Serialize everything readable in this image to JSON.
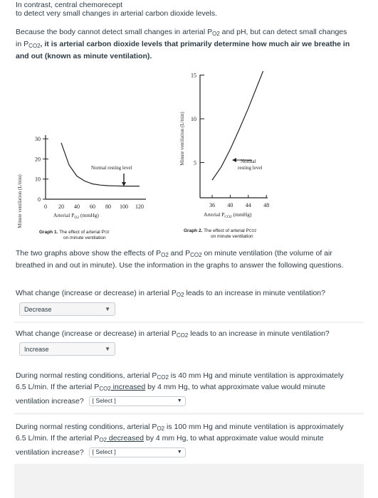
{
  "intro": {
    "line0": "In contrast, central chemorecept",
    "line1": "to detect very small changes in arterial carbon dioxide levels.",
    "para_a": "Because the body cannot detect small changes in arterial P",
    "po2_sub": "O2",
    "para_b": " and pH, but can detect small changes in P",
    "pco2_sub": "CO2",
    "para_c": ", it is arterial carbon dioxide levels that primarily determine how much air we breathe in and out (known as minute ventilation)."
  },
  "graph1": {
    "y_label": "Minute ventilation (L/min)",
    "y_ticks": [
      "30",
      "20",
      "10",
      "0"
    ],
    "x_ticks": [
      "0",
      "20",
      "40",
      "60",
      "80",
      "100",
      "120"
    ],
    "x_label_a": "Arterial P",
    "x_label_sub": "O2",
    "x_label_b": " (mmHg)",
    "annotation": "Normal resting level",
    "caption_a": "Graph 1.",
    "caption_b": " The effect of arterial P",
    "caption_sub": "O2",
    "caption_c": "on minute ventilation",
    "curve_x": [
      20,
      30,
      40,
      50,
      60,
      70,
      80,
      90,
      100,
      110,
      120
    ],
    "curve_y": [
      28,
      17,
      11.5,
      9,
      7.6,
      7,
      6.7,
      6.6,
      6.5,
      6.5,
      6.5
    ]
  },
  "graph2": {
    "y_label": "Minute ventilation (L/min)",
    "y_ticks": [
      "15",
      "10",
      "5"
    ],
    "x_ticks": [
      "36",
      "40",
      "44",
      "48"
    ],
    "x_label_a": "Arterial P",
    "x_label_sub": "CO2",
    "x_label_b": " (mmHg)",
    "annotation_1": "Normal",
    "annotation_2": "resting level",
    "caption_a": "Graph 2.",
    "caption_b": " The effect of arterial P",
    "caption_sub": "CO2",
    "caption_c": "on minute ventilation",
    "curve_x": [
      36,
      38,
      40,
      42,
      44,
      46,
      48
    ],
    "curve_y": [
      3,
      4.5,
      6.5,
      8.8,
      11.2,
      13.8,
      16.4
    ]
  },
  "body_text": {
    "p1_a": "The two graphs above show the effects of P",
    "p1_sub1": "O2",
    "p1_b": " and P",
    "p1_sub2": "CO2",
    "p1_c": " on minute ventilation (the volume of air breathed in and out in minute). Use the information in the graphs to answer the following questions."
  },
  "q1": {
    "a": "What change (increase or decrease) in arterial P",
    "sub": "O2",
    "b": " leads to an increase in minute ventilation?",
    "selected": "Decrease"
  },
  "q2": {
    "a": "What change (increase or decrease) in arterial P",
    "sub": "CO2",
    "b": " leads to an increase in minute ventilation?",
    "selected": "Increase"
  },
  "q3": {
    "l1_a": "During normal resting conditions, arterial P",
    "l1_sub": "CO2",
    "l1_b": " is 40 mm Hg and minute ventilation is approximately",
    "l2_a": "6.5 L/min.  If the arterial P",
    "l2_sub": "CO2",
    "l2_b": " increased",
    "l2_c": " by 4 mm Hg, to what approximate value would minute",
    "l3": "ventilation increase?",
    "selected": "[ Select ]"
  },
  "q4": {
    "l1_a": "During normal resting conditions, arterial P",
    "l1_sub": "O2",
    "l1_b": " is 100 mm Hg and minute ventilation is approximately",
    "l2_a": "6.5 L/min.  If the arterial P",
    "l2_sub": "O2",
    "l2_b": " decreased",
    "l2_c": " by 4 mm Hg, to what approximate value would minute",
    "l3": "ventilation increase?",
    "selected": "[ Select ]"
  }
}
